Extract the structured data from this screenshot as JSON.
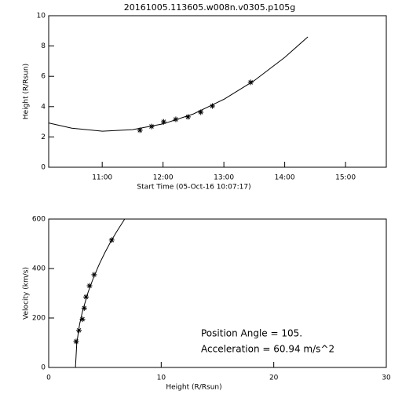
{
  "chart_data": [
    {
      "type": "line",
      "title": "20161005.113605.w008n.v0305.p105g",
      "x_label": "Start Time (05-Oct-16 10:07:17)",
      "y_label": "Height (R/Rsun)",
      "xlim": [
        10.12,
        15.67
      ],
      "ylim": [
        0,
        10
      ],
      "xticks": [
        {
          "value": 11,
          "label": "11:00"
        },
        {
          "value": 12,
          "label": "12:00"
        },
        {
          "value": 13,
          "label": "13:00"
        },
        {
          "value": 14,
          "label": "14:00"
        },
        {
          "value": 15,
          "label": "15:00"
        }
      ],
      "yticks": [
        0,
        2,
        4,
        6,
        8,
        10
      ],
      "series": [
        {
          "color": "#000000",
          "marker": "star",
          "x": [
            11.62,
            11.81,
            12.01,
            12.21,
            12.41,
            12.62,
            12.81,
            13.44
          ],
          "values": [
            2.44,
            2.69,
            3.0,
            3.16,
            3.32,
            3.63,
            4.04,
            5.6
          ]
        },
        {
          "color": "#000000",
          "x": [
            10.12,
            10.5,
            11,
            11.5,
            12,
            12.5,
            13,
            13.5,
            14,
            14.38
          ],
          "values": [
            2.92,
            2.58,
            2.38,
            2.48,
            2.86,
            3.52,
            4.48,
            5.72,
            7.25,
            8.6
          ]
        }
      ]
    },
    {
      "type": "line",
      "x_label": "Height (R/Rsun)",
      "y_label": "Velocity (km/s)",
      "xlim": [
        0,
        30
      ],
      "ylim": [
        0,
        600
      ],
      "xticks": [
        0,
        10,
        20,
        30
      ],
      "yticks": [
        0,
        200,
        400,
        600
      ],
      "annotations": [
        "Position Angle =  105.",
        "Acceleration =  60.94 m/s^2"
      ],
      "series": [
        {
          "color": "#000000",
          "marker": "star",
          "x": [
            2.44,
            2.69,
            3.0,
            3.16,
            3.32,
            3.63,
            4.04,
            5.6
          ],
          "values": [
            105,
            150,
            195,
            240,
            285,
            330,
            375,
            515
          ]
        },
        {
          "color": "#000000",
          "x": [
            2.38,
            2.5,
            2.75,
            3,
            3.5,
            4,
            4.5,
            5,
            5.5,
            6,
            6.75
          ],
          "values": [
            0,
            99,
            175,
            226,
            304,
            365,
            418,
            465,
            507,
            546,
            600
          ]
        }
      ]
    }
  ]
}
